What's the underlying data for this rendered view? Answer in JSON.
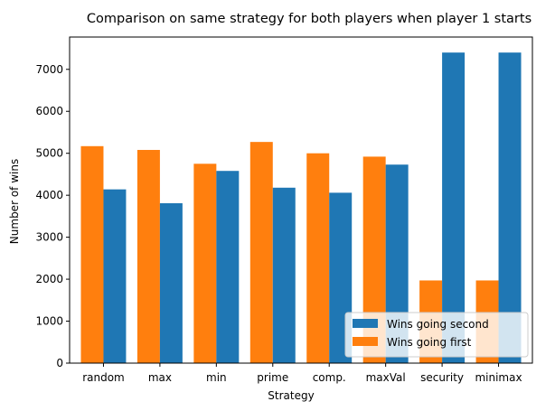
{
  "chart_data": {
    "type": "bar",
    "title": "Comparison on same strategy for both players when player 1 starts",
    "xlabel": "Strategy",
    "ylabel": "Number of wins",
    "categories": [
      "random",
      "max",
      "min",
      "prime",
      "comp.",
      "maxVal",
      "security",
      "minimax"
    ],
    "series": [
      {
        "name": "Wins going first",
        "color": "#ff7f0e",
        "values": [
          5170,
          5080,
          4750,
          5270,
          5000,
          4920,
          1970,
          1970
        ]
      },
      {
        "name": "Wins going second",
        "color": "#1f77b4",
        "values": [
          4140,
          3810,
          4580,
          4180,
          4060,
          4730,
          7400,
          7400
        ]
      }
    ],
    "ylim": [
      0,
      7770
    ],
    "yticks": [
      0,
      1000,
      2000,
      3000,
      4000,
      5000,
      6000,
      7000
    ],
    "legend": {
      "placement": "lower-right",
      "entries": [
        "Wins going second",
        "Wins going first"
      ]
    },
    "grid": false
  }
}
